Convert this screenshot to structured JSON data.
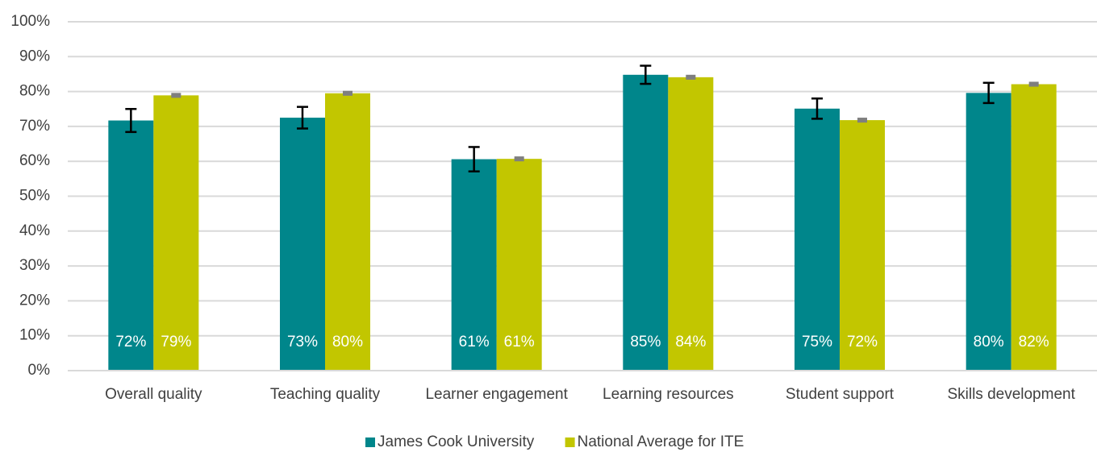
{
  "chart_data": {
    "type": "bar",
    "categories": [
      "Overall quality",
      "Teaching quality",
      "Learner engagement",
      "Learning resources",
      "Student support",
      "Skills development"
    ],
    "series": [
      {
        "name": "James Cook University",
        "color": "#00868b",
        "values": [
          71.7,
          72.5,
          60.6,
          84.8,
          75.1,
          79.6
        ],
        "value_labels": [
          "72%",
          "73%",
          "61%",
          "85%",
          "75%",
          "80%"
        ],
        "errors": [
          3.3,
          3.1,
          3.5,
          2.6,
          2.9,
          2.9
        ],
        "error_color": "#000000"
      },
      {
        "name": "National Average for ITE",
        "color": "#c2c600",
        "values": [
          78.9,
          79.5,
          60.7,
          84.1,
          71.8,
          82.1
        ],
        "value_labels": [
          "79%",
          "80%",
          "61%",
          "84%",
          "72%",
          "82%"
        ],
        "errors": [
          0.3,
          0.3,
          0.3,
          0.3,
          0.3,
          0.3
        ],
        "error_color": "#7f7f7f"
      }
    ],
    "ylim": [
      0,
      100
    ],
    "yticks": [
      {
        "value": 0,
        "label": "0%"
      },
      {
        "value": 10,
        "label": "10%"
      },
      {
        "value": 20,
        "label": "20%"
      },
      {
        "value": 30,
        "label": "30%"
      },
      {
        "value": 40,
        "label": "40%"
      },
      {
        "value": 50,
        "label": "50%"
      },
      {
        "value": 60,
        "label": "60%"
      },
      {
        "value": 70,
        "label": "70%"
      },
      {
        "value": 80,
        "label": "80%"
      },
      {
        "value": 90,
        "label": "90%"
      },
      {
        "value": 100,
        "label": "100%"
      }
    ],
    "grid": true,
    "legend": "bottom"
  }
}
